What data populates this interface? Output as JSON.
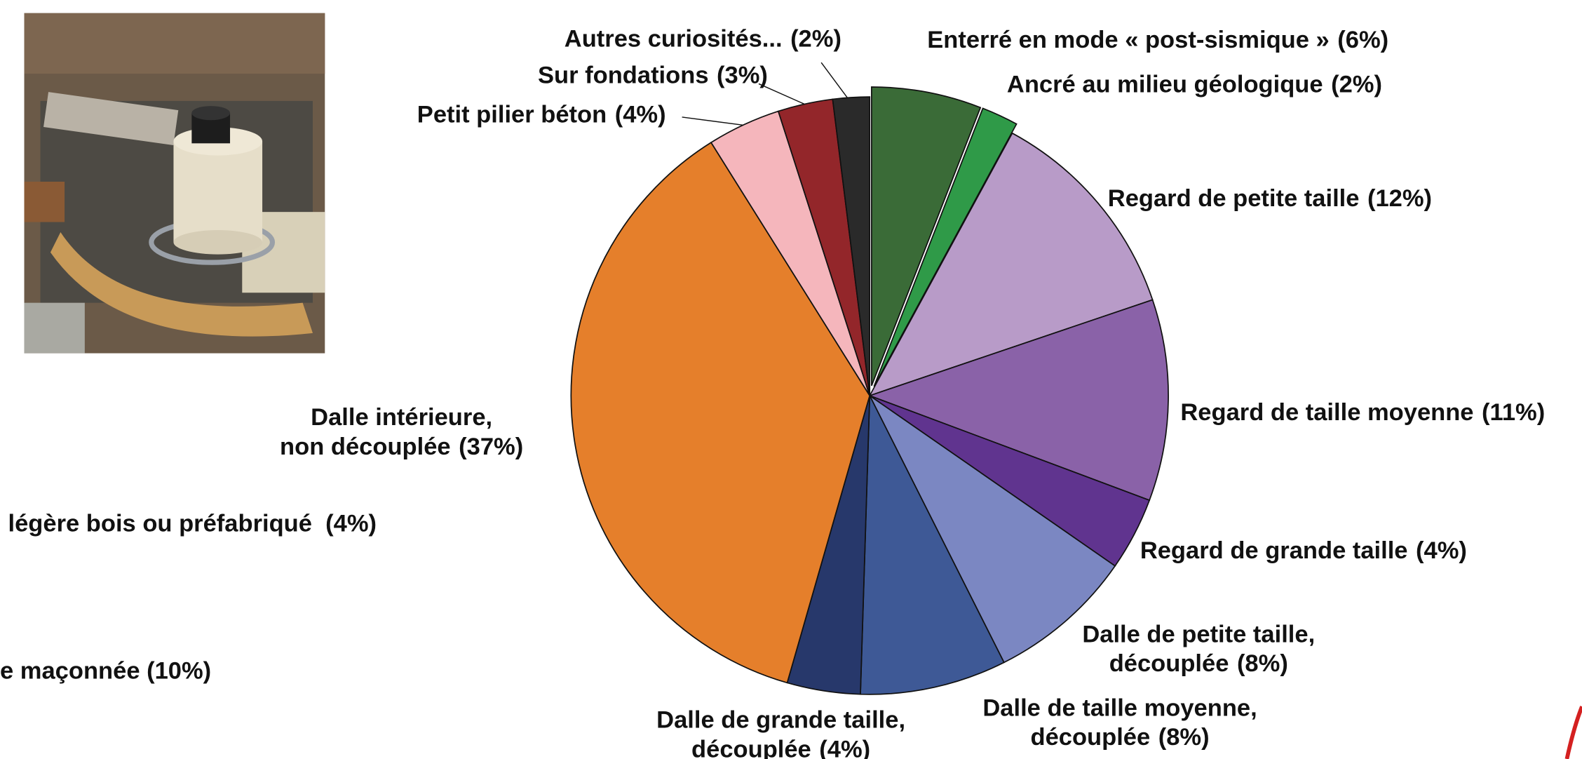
{
  "chart_data": {
    "type": "pie",
    "categories": [
      [
        "Enterré en mode « post-sismique »"
      ],
      [
        "Ancré au milieu géologique"
      ],
      [
        "Regard de petite taille"
      ],
      [
        "Regard de taille moyenne"
      ],
      [
        "Regard de grande taille"
      ],
      [
        "Dalle de petite taille,",
        "découplée"
      ],
      [
        "Dalle de taille moyenne,",
        "découplée"
      ],
      [
        "Dalle de grande taille,",
        "découplée"
      ],
      [
        "Dalle intérieure,",
        "non découplée"
      ],
      [
        "Petit pilier béton"
      ],
      [
        "Sur fondations"
      ],
      [
        "Autres curiosités..."
      ]
    ],
    "values": [
      6,
      2,
      12,
      11,
      4,
      8,
      8,
      4,
      37,
      4,
      3,
      2
    ],
    "value_labels": [
      "(6%)",
      "(2%)",
      "(12%)",
      "(11%)",
      "(4%)",
      "(8%)",
      "(8%)",
      "(4%)",
      "(37%)",
      "(4%)",
      "(3%)",
      "(2%)"
    ],
    "colors": [
      "#3a6b37",
      "#2f9a48",
      "#b89bc8",
      "#8a62a8",
      "#60348f",
      "#7b87c2",
      "#3e5996",
      "#27386b",
      "#e57f2b",
      "#f5b6bc",
      "#93262a",
      "#2a2a2a"
    ],
    "annotations": [
      "légère bois ou préfabriqué  (4%)",
      "e maçonnée (10%)"
    ]
  }
}
